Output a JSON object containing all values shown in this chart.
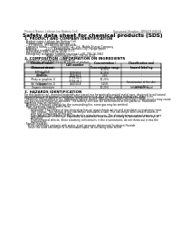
{
  "bg_color": "#ffffff",
  "header_left": "Product Name: Lithium Ion Battery Cell",
  "header_right_line1": "Document Number: SRP049-00019",
  "header_right_line2": "Established / Revision: Dec.7.2010",
  "title": "Safety data sheet for chemical products (SDS)",
  "section1_title": "1. PRODUCT AND COMPANY IDENTIFICATION",
  "section1_lines": [
    "· Product name: Lithium Ion Battery Cell",
    "· Product code: Cylindrical-type cell",
    "     SYT88500L, SYT48500L, SYT88500A",
    "· Company name:     Sanyo Electric Co., Ltd., Mobile Energy Company",
    "· Address:           2001  Kamionkubo, Sumoto-City, Hyogo, Japan",
    "· Telephone number: +81-799-26-4111",
    "· Fax number: +81-799-26-4129",
    "· Emergency telephone number (daytime): +81-799-26-3942",
    "                           (Night and holiday): +81-799-26-4101"
  ],
  "section2_title": "2. COMPOSITION / INFORMATION ON INGREDIENTS",
  "section2_sub1": "· Substance or preparation: Preparation",
  "section2_sub2": "· Information about the chemical nature of product:",
  "table_col_headers": [
    "Chemical name /\nCommon name",
    "CAS number",
    "Concentration /\nConcentration range",
    "Classification and\nhazard labeling"
  ],
  "table_rows": [
    [
      "Lithium cobalt oxide\n(LiMnCo2O4)",
      "-",
      "30-40%",
      "-"
    ],
    [
      "Iron",
      "7439-89-6",
      "15-25%",
      "-"
    ],
    [
      "Aluminum",
      "7429-90-5",
      "2-5%",
      "-"
    ],
    [
      "Graphite\n(Flaky or graphite-1)\n(All flaky graphite-1)",
      "77709-42-5\n77709-44-2",
      "10-20%",
      "-"
    ],
    [
      "Copper",
      "7440-50-8",
      "5-15%",
      "Sensitization of the skin\ngroup No.2"
    ],
    [
      "Organic electrolyte",
      "-",
      "10-20%",
      "Inflammable liquid"
    ]
  ],
  "section3_title": "3. HAZARDS IDENTIFICATION",
  "section3_para": [
    "For this battery cell, chemical materials are stored in a hermetically-sealed metal case, designed to withstand",
    "temperatures and pressure-variations during normal use. As a result, during normal use, there is no",
    "physical danger of ignition or explosion and there is no danger of hazardous materials leakage.",
    "  However, if exposed to a fire, added mechanical shocks, decomposed, when electrolytic short-circuity may cause",
    "the gas release cannot be operated. The battery cell case will be breached at fire-patterns. Hazardous",
    "materials may be released.",
    "  Moreover, if heated strongly by the surrounding fire, some gas may be emitted."
  ],
  "bullet_most": "· Most important hazard and effects:",
  "human_health": "Human health effects:",
  "inhalation": "Inhalation: The release of the electrolyte has an anaesthesia action and stimulates a respiratory tract.",
  "skin": "Skin contact: The release of the electrolyte stimulates a skin. The electrolyte skin contact causes a",
  "skin2": "sore and stimulation on the skin.",
  "eye": "Eye contact: The release of the electrolyte stimulates eyes. The electrolyte eye contact causes a sore",
  "eye2": "and stimulation on the eye. Especially, a substance that causes a strong inflammation of the eye is",
  "eye3": "contained.",
  "env": "Environmental effects: Since a battery cell remains in the environment, do not throw out it into the",
  "env2": "environment.",
  "bullet_specific": "· Specific hazards:",
  "specific1": "If the electrolyte contacts with water, it will generate detrimental hydrogen fluoride.",
  "specific2": "Since the used electrolyte is inflammable liquid, do not bring close to fire."
}
